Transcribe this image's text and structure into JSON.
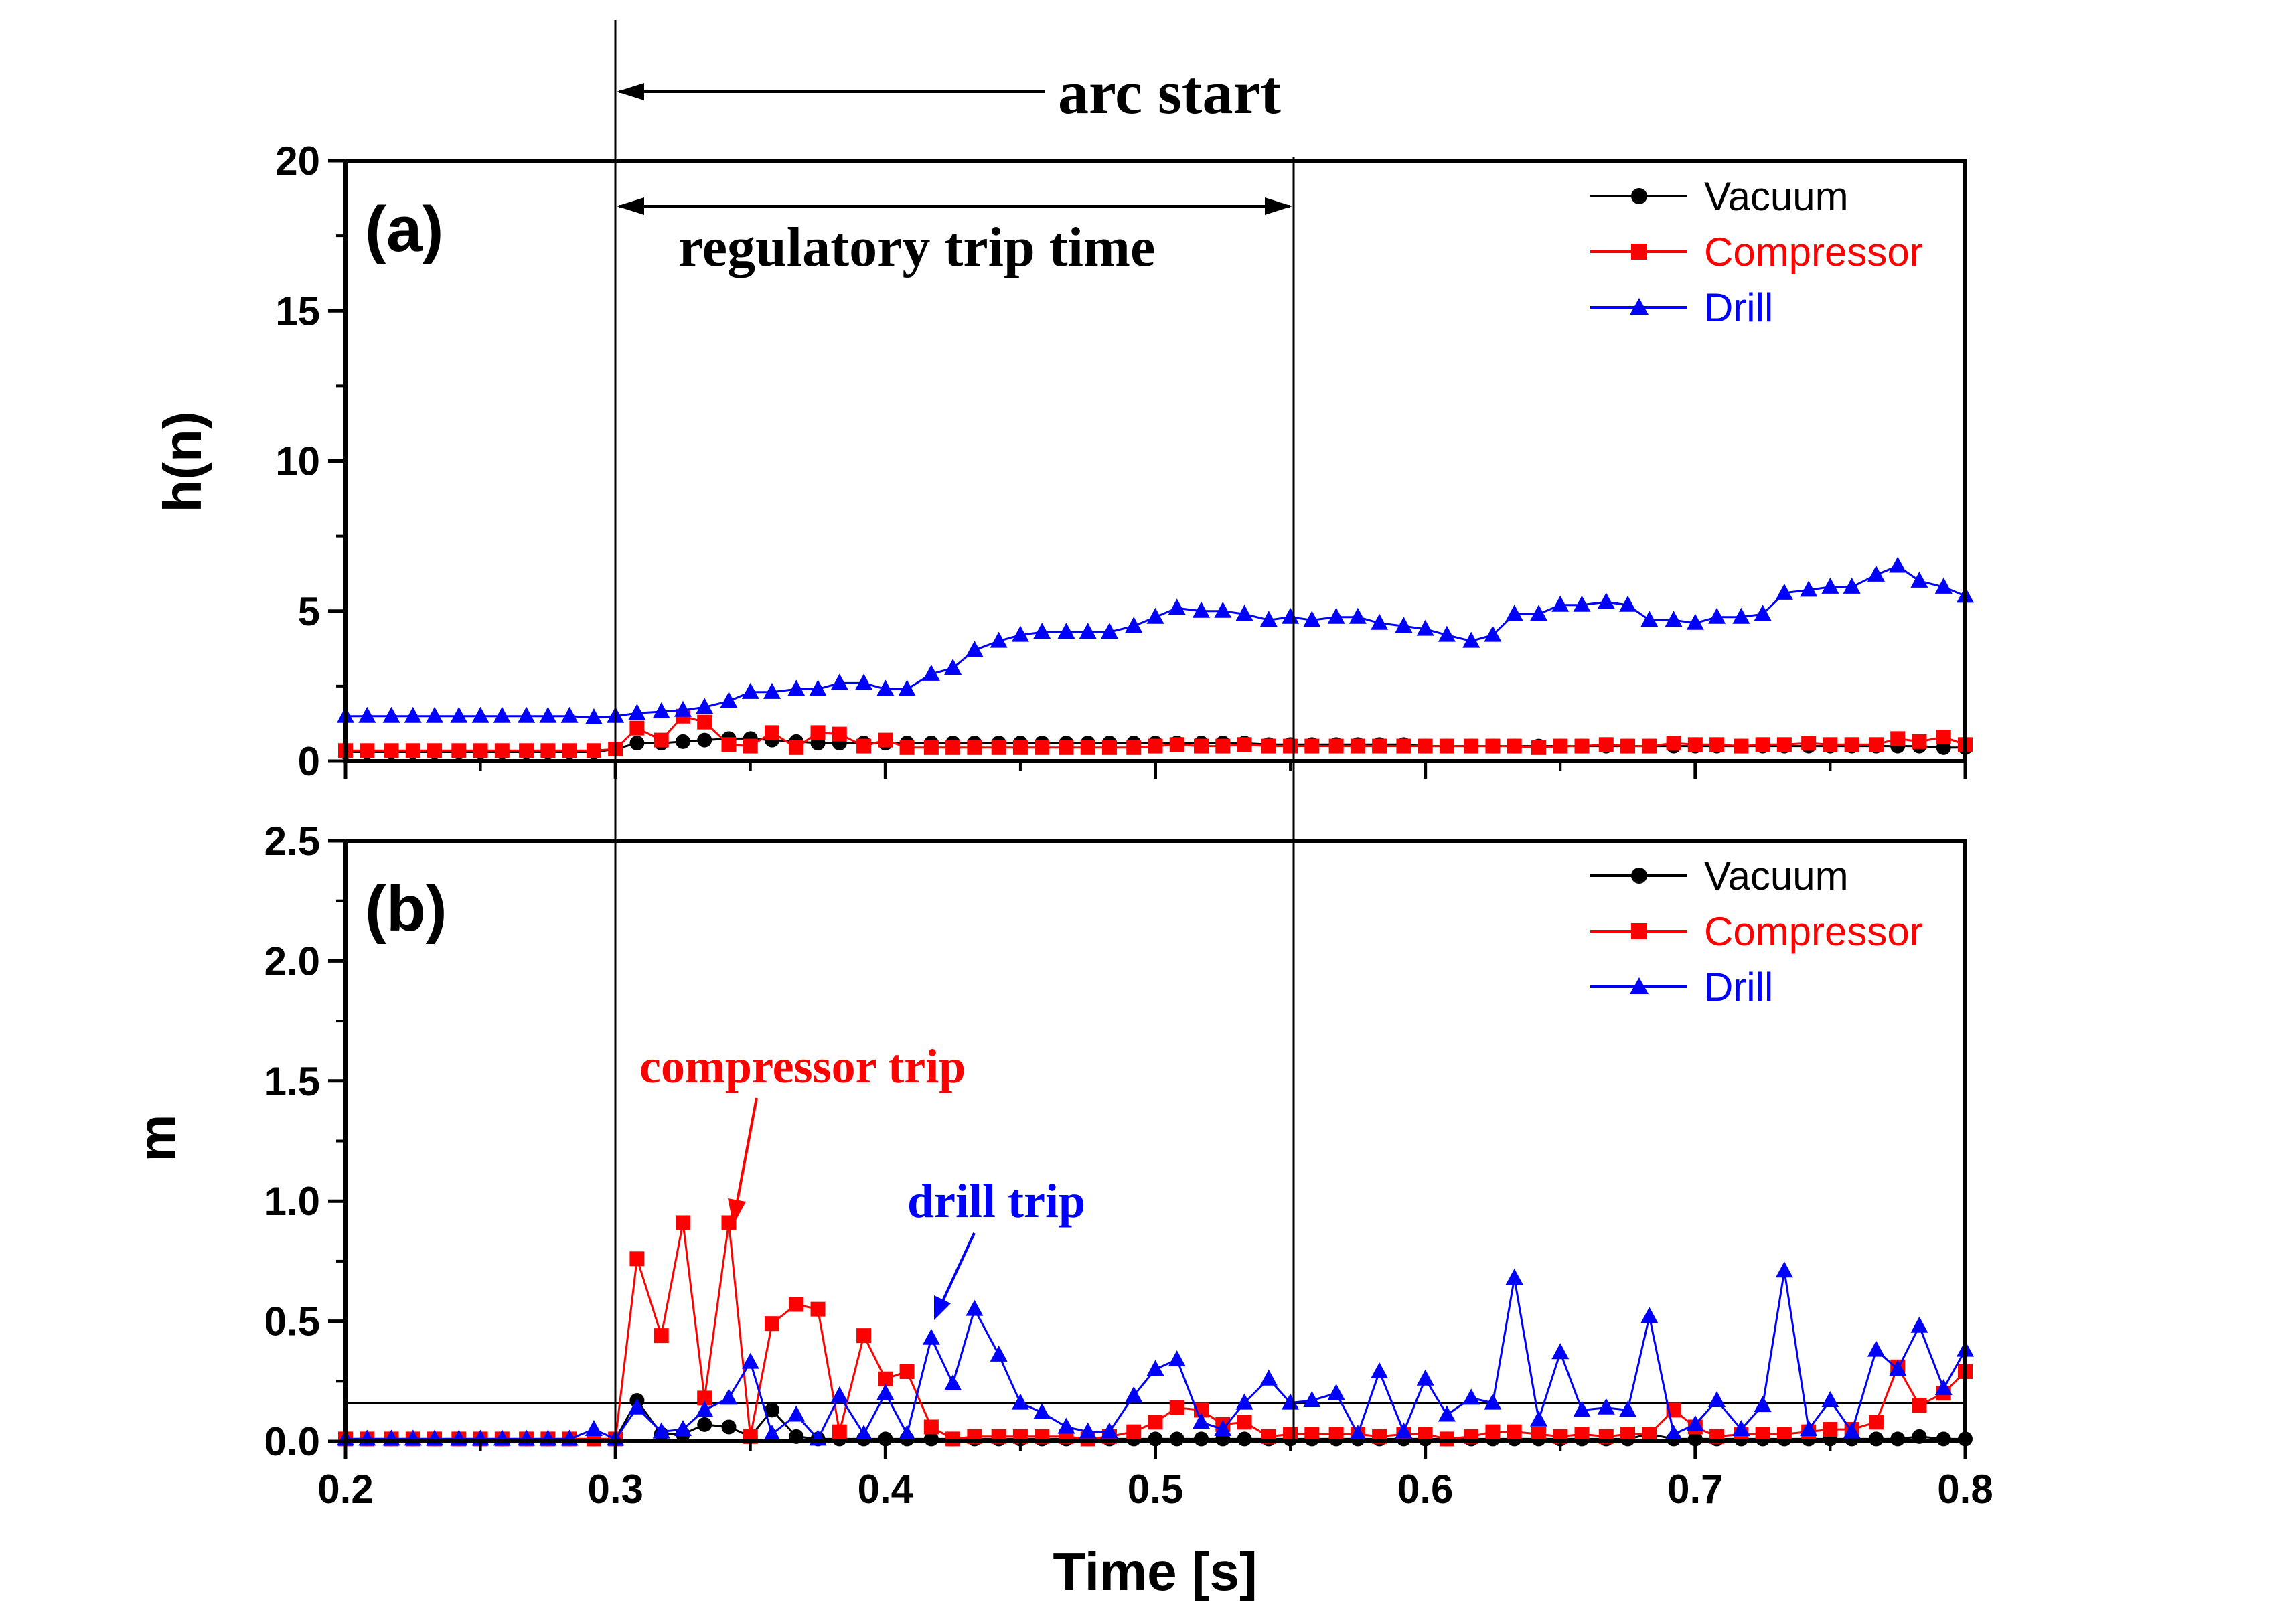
{
  "colors": {
    "Vacuum": "#000000",
    "Compressor": "#ff0000",
    "Drill": "#0000ff",
    "axis": "#000000"
  },
  "x_ticks": [
    "0.2",
    "0.3",
    "0.4",
    "0.5",
    "0.6",
    "0.7",
    "0.8"
  ],
  "x_title": "Time [s]",
  "annotations": {
    "arc_start": "arc start",
    "regulatory_trip_time": "regulatory trip time",
    "compressor_trip": "compressor trip",
    "drill_trip": "drill trip"
  },
  "legend": {
    "vacuum": "Vacuum",
    "compressor": "Compressor",
    "drill": "Drill"
  },
  "chart_data": [
    {
      "type": "line",
      "panel": "(a)",
      "ylabel": "h(n)",
      "xlabel": "Time [s]",
      "xlim": [
        0.2,
        0.8
      ],
      "ylim": [
        0,
        20
      ],
      "y_ticks": [
        "0",
        "5",
        "10",
        "15",
        "20"
      ],
      "grid": false,
      "legend_position": "top-right",
      "vertical_markers": [
        0.3,
        0.55
      ],
      "markers": {
        "Vacuum": "circle",
        "Compressor": "square",
        "Drill": "triangle"
      },
      "series": [
        {
          "name": "Vacuum",
          "x": [
            0.2,
            0.208,
            0.217,
            0.225,
            0.233,
            0.242,
            0.25,
            0.258,
            0.267,
            0.275,
            0.283,
            0.292,
            0.3,
            0.308,
            0.317,
            0.325,
            0.333,
            0.342,
            0.35,
            0.358,
            0.367,
            0.375,
            0.383,
            0.392,
            0.4,
            0.408,
            0.417,
            0.425,
            0.433,
            0.442,
            0.45,
            0.458,
            0.467,
            0.475,
            0.483,
            0.492,
            0.5,
            0.508,
            0.517,
            0.525,
            0.533,
            0.542,
            0.55,
            0.558,
            0.567,
            0.575,
            0.583,
            0.592,
            0.6,
            0.608,
            0.617,
            0.625,
            0.633,
            0.642,
            0.65,
            0.658,
            0.667,
            0.675,
            0.683,
            0.692,
            0.7,
            0.708,
            0.717,
            0.725,
            0.733,
            0.742,
            0.75,
            0.758,
            0.767,
            0.775,
            0.783,
            0.792,
            0.8
          ],
          "y": [
            0.3,
            0.3,
            0.3,
            0.3,
            0.3,
            0.3,
            0.3,
            0.3,
            0.3,
            0.3,
            0.3,
            0.3,
            0.4,
            0.6,
            0.6,
            0.65,
            0.7,
            0.75,
            0.75,
            0.7,
            0.65,
            0.6,
            0.6,
            0.6,
            0.6,
            0.6,
            0.6,
            0.6,
            0.6,
            0.6,
            0.6,
            0.6,
            0.6,
            0.6,
            0.6,
            0.6,
            0.6,
            0.6,
            0.6,
            0.6,
            0.6,
            0.55,
            0.55,
            0.55,
            0.55,
            0.55,
            0.55,
            0.55,
            0.5,
            0.5,
            0.5,
            0.5,
            0.5,
            0.5,
            0.5,
            0.5,
            0.5,
            0.5,
            0.5,
            0.5,
            0.5,
            0.5,
            0.5,
            0.5,
            0.5,
            0.5,
            0.5,
            0.5,
            0.5,
            0.5,
            0.5,
            0.45,
            0.45
          ]
        },
        {
          "name": "Compressor",
          "x": [
            0.2,
            0.208,
            0.217,
            0.225,
            0.233,
            0.242,
            0.25,
            0.258,
            0.267,
            0.275,
            0.283,
            0.292,
            0.3,
            0.308,
            0.317,
            0.325,
            0.333,
            0.342,
            0.35,
            0.358,
            0.367,
            0.375,
            0.383,
            0.392,
            0.4,
            0.408,
            0.417,
            0.425,
            0.433,
            0.442,
            0.45,
            0.458,
            0.467,
            0.475,
            0.483,
            0.492,
            0.5,
            0.508,
            0.517,
            0.525,
            0.533,
            0.542,
            0.55,
            0.558,
            0.567,
            0.575,
            0.583,
            0.592,
            0.6,
            0.608,
            0.617,
            0.625,
            0.633,
            0.642,
            0.65,
            0.658,
            0.667,
            0.675,
            0.683,
            0.692,
            0.7,
            0.708,
            0.717,
            0.725,
            0.733,
            0.742,
            0.75,
            0.758,
            0.767,
            0.775,
            0.783,
            0.792,
            0.8
          ],
          "y": [
            0.35,
            0.35,
            0.35,
            0.35,
            0.35,
            0.35,
            0.35,
            0.35,
            0.35,
            0.35,
            0.35,
            0.35,
            0.4,
            1.1,
            0.7,
            1.5,
            1.3,
            0.55,
            0.5,
            0.95,
            0.45,
            0.95,
            0.9,
            0.5,
            0.7,
            0.45,
            0.45,
            0.45,
            0.45,
            0.45,
            0.45,
            0.45,
            0.45,
            0.45,
            0.45,
            0.45,
            0.5,
            0.55,
            0.5,
            0.5,
            0.55,
            0.5,
            0.5,
            0.5,
            0.5,
            0.5,
            0.5,
            0.5,
            0.5,
            0.5,
            0.5,
            0.5,
            0.5,
            0.45,
            0.5,
            0.5,
            0.55,
            0.5,
            0.5,
            0.6,
            0.55,
            0.55,
            0.5,
            0.55,
            0.55,
            0.6,
            0.55,
            0.55,
            0.55,
            0.75,
            0.65,
            0.8,
            0.55
          ]
        },
        {
          "name": "Drill",
          "x": [
            0.2,
            0.208,
            0.217,
            0.225,
            0.233,
            0.242,
            0.25,
            0.258,
            0.267,
            0.275,
            0.283,
            0.292,
            0.3,
            0.308,
            0.317,
            0.325,
            0.333,
            0.342,
            0.35,
            0.358,
            0.367,
            0.375,
            0.383,
            0.392,
            0.4,
            0.408,
            0.417,
            0.425,
            0.433,
            0.442,
            0.45,
            0.458,
            0.467,
            0.475,
            0.483,
            0.492,
            0.5,
            0.508,
            0.517,
            0.525,
            0.533,
            0.542,
            0.55,
            0.558,
            0.567,
            0.575,
            0.583,
            0.592,
            0.6,
            0.608,
            0.617,
            0.625,
            0.633,
            0.642,
            0.65,
            0.658,
            0.667,
            0.675,
            0.683,
            0.692,
            0.7,
            0.708,
            0.717,
            0.725,
            0.733,
            0.742,
            0.75,
            0.758,
            0.767,
            0.775,
            0.783,
            0.792,
            0.8
          ],
          "y": [
            1.5,
            1.5,
            1.5,
            1.5,
            1.5,
            1.5,
            1.5,
            1.5,
            1.5,
            1.5,
            1.5,
            1.45,
            1.5,
            1.6,
            1.65,
            1.7,
            1.8,
            2.0,
            2.3,
            2.3,
            2.4,
            2.4,
            2.6,
            2.6,
            2.4,
            2.4,
            2.9,
            3.1,
            3.7,
            4.0,
            4.2,
            4.3,
            4.3,
            4.3,
            4.3,
            4.5,
            4.8,
            5.1,
            5.0,
            5.0,
            4.9,
            4.7,
            4.8,
            4.7,
            4.8,
            4.8,
            4.6,
            4.5,
            4.4,
            4.2,
            4.0,
            4.2,
            4.9,
            4.9,
            5.2,
            5.2,
            5.3,
            5.2,
            4.7,
            4.7,
            4.6,
            4.8,
            4.8,
            4.9,
            5.6,
            5.7,
            5.8,
            5.8,
            6.2,
            6.5,
            6.0,
            5.8,
            5.5
          ]
        }
      ]
    },
    {
      "type": "line",
      "panel": "(b)",
      "ylabel": "m",
      "xlabel": "Time [s]",
      "xlim": [
        0.2,
        0.8
      ],
      "ylim": [
        0,
        2.5
      ],
      "y_ticks": [
        "0.0",
        "0.5",
        "1.0",
        "1.5",
        "2.0",
        "2.5"
      ],
      "grid": false,
      "legend_position": "top-right",
      "vertical_markers": [
        0.3,
        0.55
      ],
      "horizontal_marker": 0.15,
      "markers": {
        "Vacuum": "circle",
        "Compressor": "square",
        "Drill": "triangle"
      },
      "series": [
        {
          "name": "Vacuum",
          "x": [
            0.2,
            0.208,
            0.217,
            0.225,
            0.233,
            0.242,
            0.25,
            0.258,
            0.267,
            0.275,
            0.283,
            0.292,
            0.3,
            0.308,
            0.317,
            0.325,
            0.333,
            0.342,
            0.35,
            0.358,
            0.367,
            0.375,
            0.383,
            0.392,
            0.4,
            0.408,
            0.417,
            0.425,
            0.433,
            0.442,
            0.45,
            0.458,
            0.467,
            0.475,
            0.483,
            0.492,
            0.5,
            0.508,
            0.517,
            0.525,
            0.533,
            0.542,
            0.55,
            0.558,
            0.567,
            0.575,
            0.583,
            0.592,
            0.6,
            0.608,
            0.617,
            0.625,
            0.633,
            0.642,
            0.65,
            0.658,
            0.667,
            0.675,
            0.683,
            0.692,
            0.7,
            0.708,
            0.717,
            0.725,
            0.733,
            0.742,
            0.75,
            0.758,
            0.767,
            0.775,
            0.783,
            0.792,
            0.8
          ],
          "y": [
            0.01,
            0.01,
            0.01,
            0.01,
            0.01,
            0.01,
            0.01,
            0.01,
            0.01,
            0.01,
            0.01,
            0.01,
            0.01,
            0.17,
            0.03,
            0.03,
            0.07,
            0.06,
            0.02,
            0.13,
            0.02,
            0.01,
            0.01,
            0.01,
            0.01,
            0.01,
            0.01,
            0.01,
            0.01,
            0.01,
            0.01,
            0.01,
            0.01,
            0.01,
            0.01,
            0.01,
            0.01,
            0.01,
            0.01,
            0.01,
            0.01,
            0.01,
            0.01,
            0.01,
            0.01,
            0.01,
            0.01,
            0.01,
            0.01,
            0.01,
            0.01,
            0.01,
            0.01,
            0.01,
            0.01,
            0.01,
            0.01,
            0.01,
            0.03,
            0.01,
            0.01,
            0.01,
            0.01,
            0.01,
            0.01,
            0.01,
            0.01,
            0.01,
            0.01,
            0.01,
            0.02,
            0.01,
            0.01
          ]
        },
        {
          "name": "Compressor",
          "x": [
            0.2,
            0.208,
            0.217,
            0.225,
            0.233,
            0.242,
            0.25,
            0.258,
            0.267,
            0.275,
            0.283,
            0.292,
            0.3,
            0.308,
            0.317,
            0.325,
            0.333,
            0.342,
            0.35,
            0.358,
            0.367,
            0.375,
            0.383,
            0.392,
            0.4,
            0.408,
            0.417,
            0.425,
            0.433,
            0.442,
            0.45,
            0.458,
            0.467,
            0.475,
            0.483,
            0.492,
            0.5,
            0.508,
            0.517,
            0.525,
            0.533,
            0.542,
            0.55,
            0.558,
            0.567,
            0.575,
            0.583,
            0.592,
            0.6,
            0.608,
            0.617,
            0.625,
            0.633,
            0.642,
            0.65,
            0.658,
            0.667,
            0.675,
            0.683,
            0.692,
            0.7,
            0.708,
            0.717,
            0.725,
            0.733,
            0.742,
            0.75,
            0.758,
            0.767,
            0.775,
            0.783,
            0.792,
            0.8
          ],
          "y": [
            0.01,
            0.01,
            0.01,
            0.01,
            0.01,
            0.01,
            0.01,
            0.01,
            0.01,
            0.01,
            0.01,
            0.01,
            0.01,
            0.76,
            0.44,
            0.91,
            0.18,
            0.91,
            0.02,
            0.49,
            0.57,
            0.55,
            0.04,
            0.44,
            0.26,
            0.29,
            0.06,
            0.01,
            0.02,
            0.02,
            0.02,
            0.02,
            0.02,
            0.01,
            0.02,
            0.04,
            0.08,
            0.14,
            0.13,
            0.07,
            0.08,
            0.02,
            0.03,
            0.03,
            0.03,
            0.03,
            0.02,
            0.03,
            0.03,
            0.01,
            0.02,
            0.04,
            0.04,
            0.03,
            0.02,
            0.03,
            0.02,
            0.03,
            0.03,
            0.13,
            0.06,
            0.02,
            0.03,
            0.03,
            0.03,
            0.04,
            0.05,
            0.05,
            0.08,
            0.31,
            0.15,
            0.2,
            0.29
          ]
        },
        {
          "name": "Drill",
          "x": [
            0.2,
            0.208,
            0.217,
            0.225,
            0.233,
            0.242,
            0.25,
            0.258,
            0.267,
            0.275,
            0.283,
            0.292,
            0.3,
            0.308,
            0.317,
            0.325,
            0.333,
            0.342,
            0.35,
            0.358,
            0.367,
            0.375,
            0.383,
            0.392,
            0.4,
            0.408,
            0.417,
            0.425,
            0.433,
            0.442,
            0.45,
            0.458,
            0.467,
            0.475,
            0.483,
            0.492,
            0.5,
            0.508,
            0.517,
            0.525,
            0.533,
            0.542,
            0.55,
            0.558,
            0.567,
            0.575,
            0.583,
            0.592,
            0.6,
            0.608,
            0.617,
            0.625,
            0.633,
            0.642,
            0.65,
            0.658,
            0.667,
            0.675,
            0.683,
            0.692,
            0.7,
            0.708,
            0.717,
            0.725,
            0.733,
            0.742,
            0.75,
            0.758,
            0.767,
            0.775,
            0.783,
            0.792,
            0.8
          ],
          "y": [
            0.01,
            0.01,
            0.01,
            0.01,
            0.01,
            0.01,
            0.01,
            0.01,
            0.01,
            0.01,
            0.01,
            0.05,
            0.01,
            0.14,
            0.04,
            0.05,
            0.13,
            0.18,
            0.33,
            0.03,
            0.11,
            0.01,
            0.19,
            0.03,
            0.2,
            0.03,
            0.43,
            0.24,
            0.55,
            0.36,
            0.16,
            0.12,
            0.06,
            0.04,
            0.04,
            0.19,
            0.3,
            0.34,
            0.08,
            0.05,
            0.16,
            0.26,
            0.16,
            0.17,
            0.2,
            0.03,
            0.29,
            0.04,
            0.26,
            0.11,
            0.18,
            0.16,
            0.68,
            0.09,
            0.37,
            0.13,
            0.14,
            0.13,
            0.52,
            0.03,
            0.07,
            0.17,
            0.05,
            0.15,
            0.71,
            0.05,
            0.17,
            0.04,
            0.38,
            0.3,
            0.48,
            0.22,
            0.38
          ]
        }
      ]
    }
  ]
}
